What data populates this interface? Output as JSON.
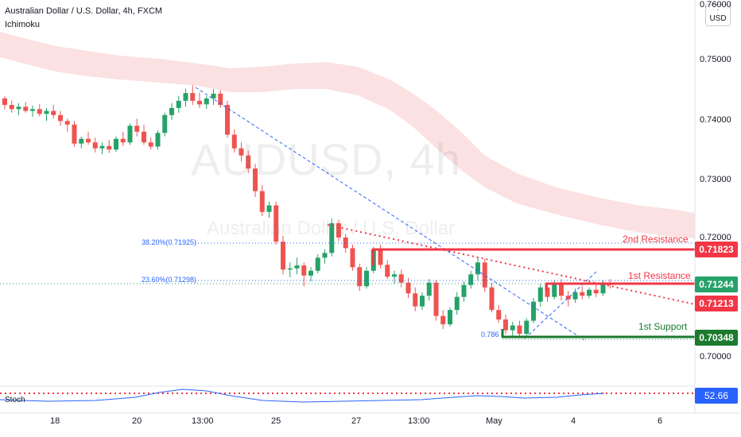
{
  "header": {
    "title": "Australian Dollar / U.S. Dollar, 4h, FXCM",
    "indicator": "Ichimoku"
  },
  "currency_button": "USD",
  "watermark": {
    "symbol": "AUDUSD, 4h",
    "name": "Australian Dollar / U.S. Dollar"
  },
  "price_axis": {
    "ticks": [
      "0.76000",
      "0.75000",
      "0.74000",
      "0.73000",
      "0.72000",
      "0.70000"
    ]
  },
  "time_axis": {
    "ticks": [
      "18",
      "20",
      "13:00",
      "25",
      "27",
      "13:00",
      "May",
      "4",
      "6"
    ]
  },
  "levels": {
    "second_resistance": {
      "label": "2nd Resistance",
      "price": "0.71823",
      "color": "#f23645"
    },
    "first_resistance": {
      "label": "1st Resistance",
      "price": "0.71244",
      "color": "#f23645"
    },
    "trendline_price": {
      "price": "0.71213",
      "color": "#f23645"
    },
    "first_support": {
      "label": "1st Support",
      "price": "0.70348",
      "color": "#1b7a2e"
    }
  },
  "fib_labels": {
    "fib_382": "38.20%(0.71925)",
    "fib_236": "23.60%(0.71298)",
    "fib_786": "0.786"
  },
  "stoch": {
    "label": "Stoch",
    "value": "52.66",
    "accent": "#2962ff"
  },
  "colors": {
    "bull": "#26a269",
    "bear": "#ef5350",
    "cloud": "#f8c9c9"
  },
  "candles": [
    [
      0.7436,
      0.744,
      0.7418,
      0.7425
    ],
    [
      0.7425,
      0.7432,
      0.7412,
      0.7418
    ],
    [
      0.7418,
      0.7428,
      0.7408,
      0.7422
    ],
    [
      0.7422,
      0.743,
      0.7412,
      0.7415
    ],
    [
      0.7415,
      0.7424,
      0.7405,
      0.7418
    ],
    [
      0.7418,
      0.7426,
      0.7406,
      0.741
    ],
    [
      0.741,
      0.742,
      0.7398,
      0.7415
    ],
    [
      0.7415,
      0.7425,
      0.7402,
      0.7408
    ],
    [
      0.7408,
      0.7415,
      0.739,
      0.7398
    ],
    [
      0.7398,
      0.7402,
      0.738,
      0.7392
    ],
    [
      0.7392,
      0.7398,
      0.7355,
      0.736
    ],
    [
      0.736,
      0.7372,
      0.7352,
      0.7368
    ],
    [
      0.7368,
      0.738,
      0.7358,
      0.7362
    ],
    [
      0.7362,
      0.737,
      0.7345,
      0.7352
    ],
    [
      0.7352,
      0.7362,
      0.7342,
      0.7356
    ],
    [
      0.7356,
      0.7366,
      0.7344,
      0.735
    ],
    [
      0.735,
      0.7372,
      0.7346,
      0.7368
    ],
    [
      0.7368,
      0.738,
      0.7356,
      0.7362
    ],
    [
      0.7362,
      0.7394,
      0.7358,
      0.739
    ],
    [
      0.739,
      0.7402,
      0.7372,
      0.738
    ],
    [
      0.738,
      0.7392,
      0.7358,
      0.7362
    ],
    [
      0.7362,
      0.737,
      0.735,
      0.7355
    ],
    [
      0.7355,
      0.7382,
      0.735,
      0.7378
    ],
    [
      0.7378,
      0.7412,
      0.7372,
      0.7408
    ],
    [
      0.7408,
      0.7428,
      0.74,
      0.742
    ],
    [
      0.742,
      0.744,
      0.7412,
      0.7432
    ],
    [
      0.7432,
      0.7452,
      0.7422,
      0.7445
    ],
    [
      0.7445,
      0.7458,
      0.7425,
      0.7432
    ],
    [
      0.7432,
      0.7446,
      0.742,
      0.7426
    ],
    [
      0.7426,
      0.744,
      0.7418,
      0.7436
    ],
    [
      0.7436,
      0.7452,
      0.7425,
      0.7444
    ],
    [
      0.7444,
      0.745,
      0.742,
      0.7425
    ],
    [
      0.7425,
      0.7432,
      0.737,
      0.7375
    ],
    [
      0.7375,
      0.7384,
      0.7345,
      0.7352
    ],
    [
      0.7352,
      0.7362,
      0.733,
      0.734
    ],
    [
      0.734,
      0.7348,
      0.731,
      0.7318
    ],
    [
      0.7318,
      0.7326,
      0.727,
      0.728
    ],
    [
      0.728,
      0.729,
      0.7238,
      0.7245
    ],
    [
      0.7245,
      0.7262,
      0.7235,
      0.7256
    ],
    [
      0.7256,
      0.7262,
      0.719,
      0.7195
    ],
    [
      0.7195,
      0.7205,
      0.714,
      0.7148
    ],
    [
      0.7148,
      0.716,
      0.7135,
      0.715
    ],
    [
      0.715,
      0.7168,
      0.714,
      0.7155
    ],
    [
      0.7155,
      0.716,
      0.712,
      0.7138
    ],
    [
      0.7138,
      0.7152,
      0.7128,
      0.7146
    ],
    [
      0.7146,
      0.7174,
      0.7142,
      0.7168
    ],
    [
      0.7168,
      0.7182,
      0.7158,
      0.7176
    ],
    [
      0.7176,
      0.7234,
      0.717,
      0.7226
    ],
    [
      0.7226,
      0.7232,
      0.7196,
      0.7202
    ],
    [
      0.7202,
      0.7208,
      0.7176,
      0.7184
    ],
    [
      0.7184,
      0.719,
      0.7146,
      0.7152
    ],
    [
      0.7152,
      0.7158,
      0.7112,
      0.712
    ],
    [
      0.712,
      0.7152,
      0.7116,
      0.7146
    ],
    [
      0.7146,
      0.7186,
      0.7142,
      0.7182
    ],
    [
      0.7182,
      0.719,
      0.715,
      0.7156
    ],
    [
      0.7156,
      0.7164,
      0.7132,
      0.7136
    ],
    [
      0.7136,
      0.7146,
      0.7124,
      0.714
    ],
    [
      0.714,
      0.7148,
      0.7118,
      0.7126
    ],
    [
      0.7126,
      0.7134,
      0.71,
      0.7108
    ],
    [
      0.7108,
      0.7118,
      0.7078,
      0.7086
    ],
    [
      0.7086,
      0.711,
      0.708,
      0.7104
    ],
    [
      0.7104,
      0.7132,
      0.7096,
      0.7126
    ],
    [
      0.7126,
      0.713,
      0.7062,
      0.707
    ],
    [
      0.707,
      0.708,
      0.7048,
      0.7056
    ],
    [
      0.7056,
      0.7084,
      0.7052,
      0.708
    ],
    [
      0.708,
      0.711,
      0.7072,
      0.7102
    ],
    [
      0.7102,
      0.7128,
      0.7094,
      0.7122
    ],
    [
      0.7122,
      0.7146,
      0.7116,
      0.714
    ],
    [
      0.714,
      0.7168,
      0.713,
      0.716
    ],
    [
      0.716,
      0.7166,
      0.711,
      0.7118
    ],
    [
      0.7118,
      0.7126,
      0.7076,
      0.708
    ],
    [
      0.708,
      0.7088,
      0.7058,
      0.7064
    ],
    [
      0.7064,
      0.7072,
      0.704,
      0.7046
    ],
    [
      0.7046,
      0.706,
      0.7034,
      0.7054
    ],
    [
      0.7054,
      0.7062,
      0.7034,
      0.704
    ],
    [
      0.704,
      0.7066,
      0.7036,
      0.7062
    ],
    [
      0.7062,
      0.71,
      0.7058,
      0.7094
    ],
    [
      0.7094,
      0.7124,
      0.7086,
      0.7118
    ],
    [
      0.7118,
      0.7126,
      0.7094,
      0.7102
    ],
    [
      0.7102,
      0.713,
      0.7098,
      0.7124
    ],
    [
      0.7124,
      0.7132,
      0.7096,
      0.7104
    ],
    [
      0.7104,
      0.7112,
      0.7086,
      0.7098
    ],
    [
      0.7098,
      0.7116,
      0.7092,
      0.711
    ],
    [
      0.711,
      0.712,
      0.7098,
      0.7104
    ],
    [
      0.7104,
      0.7118,
      0.71,
      0.7114
    ],
    [
      0.7114,
      0.7122,
      0.7102,
      0.7108
    ],
    [
      0.7108,
      0.713,
      0.7104,
      0.7126
    ],
    [
      0.7126,
      0.7132,
      0.7116,
      0.7124
    ]
  ]
}
